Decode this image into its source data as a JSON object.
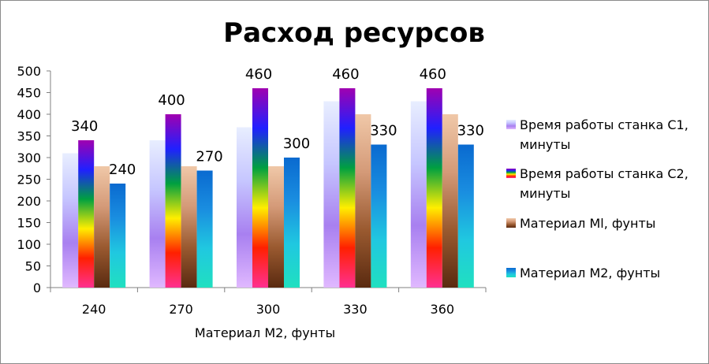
{
  "chart_data": {
    "type": "bar",
    "title": "Расход ресурсов",
    "xlabel": "Материал M2, фунты",
    "ylabel": "",
    "ylim": [
      0,
      500
    ],
    "yticks": [
      0,
      50,
      100,
      150,
      200,
      250,
      300,
      350,
      400,
      450,
      500
    ],
    "categories": [
      "240",
      "270",
      "300",
      "330",
      "360"
    ],
    "legend_position": "right",
    "grid": false,
    "series": [
      {
        "name": "Время работы станка C1, минуты",
        "legend_lines": [
          "Время работы станка C1,",
          "минуты"
        ],
        "values": [
          310,
          340,
          370,
          430,
          430
        ],
        "data_labels": [
          false,
          false,
          false,
          false,
          false
        ],
        "colors": [
          "#e8eeff",
          "#c6c6ff",
          "#a880f0",
          "#e0b8ff"
        ]
      },
      {
        "name": "Время работы станка C2, минуты",
        "legend_lines": [
          "Время работы станка C2,",
          "минуты"
        ],
        "values": [
          340,
          400,
          460,
          460,
          460
        ],
        "data_labels": [
          true,
          true,
          true,
          true,
          true
        ],
        "colors": [
          "#a000b0",
          "#2020ff",
          "#00a040",
          "#ffee00",
          "#ff2000",
          "#ff3090"
        ]
      },
      {
        "name": "Материал Ml, фунты",
        "legend_lines": [
          "Материал Ml, фунты"
        ],
        "values": [
          280,
          280,
          280,
          400,
          400
        ],
        "data_labels": [
          false,
          false,
          false,
          false,
          false
        ],
        "colors": [
          "#f0c8a8",
          "#d49a78",
          "#9a5a30",
          "#5a2a10"
        ]
      },
      {
        "name": "Материал M2, фунты",
        "legend_lines": [
          "Материал M2, фунты"
        ],
        "values": [
          240,
          270,
          300,
          330,
          330
        ],
        "data_labels": [
          true,
          true,
          true,
          true,
          true
        ],
        "colors": [
          "#0a6ad0",
          "#1a8ee0",
          "#20c8e0",
          "#20e0c0"
        ]
      }
    ]
  }
}
